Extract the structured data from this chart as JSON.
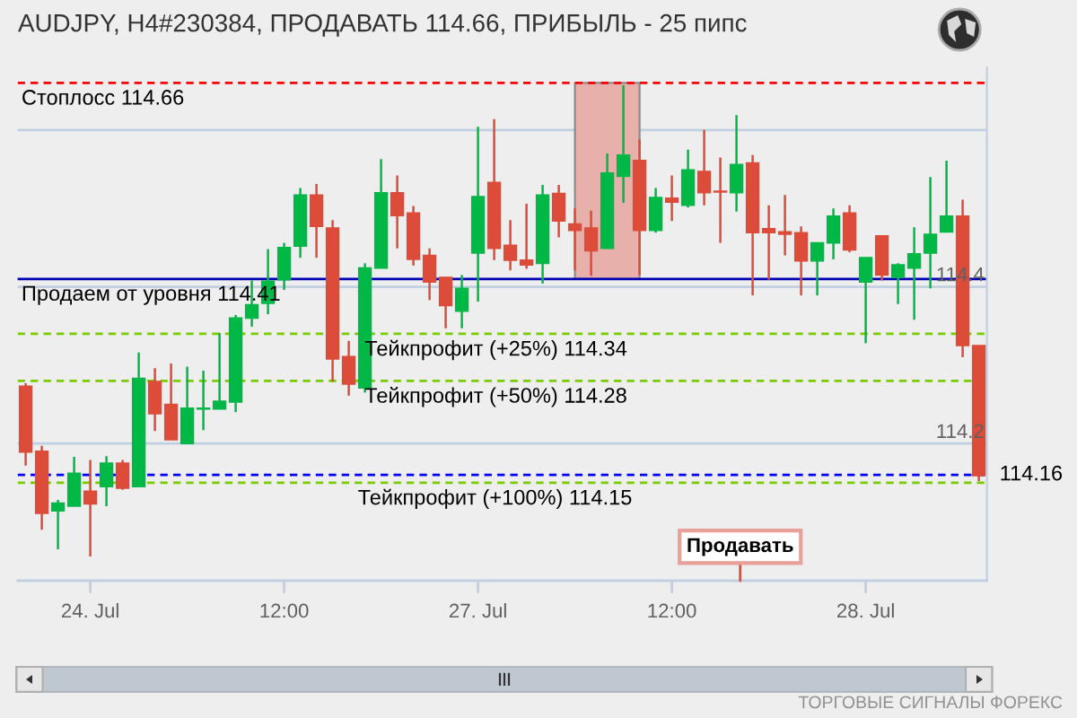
{
  "chart_data": {
    "type": "candlestick",
    "title": "AUDJPY, H4#230384, ПРОДАВАТЬ 114.66, ПРИБЫЛЬ - 25 пипс",
    "categories": [
      null,
      null,
      null,
      null,
      "24. Jul",
      null,
      null,
      null,
      null,
      null,
      null,
      null,
      null,
      null,
      null,
      null,
      "12:00",
      null,
      null,
      null,
      null,
      null,
      null,
      null,
      null,
      null,
      null,
      null,
      "27. Jul",
      null,
      null,
      null,
      null,
      null,
      null,
      null,
      null,
      null,
      null,
      null,
      "12:00",
      null,
      null,
      null,
      null,
      null,
      null,
      null,
      null,
      null,
      null,
      null,
      "28. Jul",
      null,
      null,
      null,
      null,
      null,
      null,
      null
    ],
    "series": [
      {
        "type": "line",
        "color": "#e8b0ab",
        "values": [
          null,
          null,
          null,
          null,
          null,
          null,
          null,
          null,
          null,
          null,
          null,
          null,
          null,
          null,
          null,
          null,
          null,
          null,
          null,
          null,
          null,
          null,
          null,
          null,
          null,
          null,
          null,
          null,
          null,
          null,
          null,
          null,
          null,
          null,
          null,
          null,
          null,
          null,
          null,
          null,
          null,
          null,
          null,
          null,
          null,
          null,
          null,
          null,
          null,
          null,
          null,
          null,
          null,
          null,
          null,
          null,
          null,
          null,
          null,
          null
        ],
        "lower": [
          null,
          null,
          null,
          null,
          null,
          null,
          null,
          null,
          null,
          null,
          null,
          null,
          null,
          null,
          null,
          null,
          null,
          null,
          null,
          null,
          null,
          null,
          null,
          null,
          null,
          null,
          null,
          null,
          null,
          null,
          null,
          null,
          null,
          null,
          114.41,
          114.41,
          114.41,
          114.41,
          114.41,
          null,
          null,
          null,
          null,
          null,
          null,
          null,
          null,
          null,
          null,
          null,
          null,
          null,
          null,
          null,
          null,
          null,
          null,
          null,
          null,
          null
        ],
        "upper": [
          null,
          null,
          null,
          null,
          null,
          null,
          null,
          null,
          null,
          null,
          null,
          null,
          null,
          null,
          null,
          null,
          null,
          null,
          null,
          null,
          null,
          null,
          null,
          null,
          null,
          null,
          null,
          null,
          null,
          null,
          null,
          null,
          null,
          null,
          114.66,
          114.66,
          114.66,
          114.66,
          114.66,
          null,
          null,
          null,
          null,
          null,
          null,
          null,
          null,
          null,
          null,
          null,
          null,
          null,
          null,
          null,
          null,
          null,
          null,
          null,
          null,
          null
        ]
      },
      {
        "ohlc": [
          [
            114.273,
            114.277,
            114.172,
            114.189
          ],
          [
            114.19,
            114.197,
            114.09,
            114.111
          ],
          [
            114.114,
            114.128,
            114.065,
            114.124
          ],
          [
            114.12,
            114.183,
            114.12,
            114.162
          ],
          [
            114.139,
            114.179,
            114.056,
            114.123
          ],
          [
            114.145,
            114.184,
            114.12,
            114.175
          ],
          [
            114.175,
            114.179,
            114.141,
            114.143
          ],
          [
            114.145,
            114.316,
            114.145,
            114.283
          ],
          [
            114.279,
            114.296,
            114.216,
            114.238
          ],
          [
            114.25,
            114.302,
            114.205,
            114.205
          ],
          [
            114.2,
            114.298,
            114.2,
            114.245
          ],
          [
            114.244,
            114.293,
            114.217,
            114.245
          ],
          [
            114.244,
            114.341,
            114.244,
            114.254
          ],
          [
            114.253,
            114.364,
            114.24,
            114.36
          ],
          [
            114.36,
            114.408,
            114.349,
            114.377
          ],
          [
            114.379,
            114.448,
            114.365,
            114.407
          ],
          [
            114.409,
            114.456,
            114.396,
            114.45
          ],
          [
            114.452,
            114.526,
            114.437,
            114.517
          ],
          [
            114.517,
            114.531,
            114.437,
            114.477
          ],
          [
            114.475,
            114.485,
            114.279,
            114.308
          ],
          [
            114.311,
            114.331,
            114.261,
            114.276
          ],
          [
            114.271,
            114.43,
            114.265,
            114.424
          ],
          [
            114.424,
            114.563,
            114.424,
            114.52
          ],
          [
            114.52,
            114.542,
            114.449,
            114.491
          ],
          [
            114.494,
            114.503,
            114.427,
            114.435
          ],
          [
            114.44,
            114.449,
            114.383,
            114.406
          ],
          [
            114.412,
            114.412,
            114.347,
            114.376
          ],
          [
            114.369,
            114.415,
            114.347,
            114.398
          ],
          [
            114.443,
            114.604,
            114.381,
            114.515
          ],
          [
            114.533,
            114.614,
            114.434,
            114.449
          ],
          [
            114.453,
            114.485,
            114.421,
            114.434
          ],
          [
            114.434,
            114.506,
            114.423,
            114.428
          ],
          [
            114.43,
            114.53,
            114.404,
            114.517
          ],
          [
            114.519,
            114.53,
            114.463,
            114.484
          ],
          [
            114.48,
            114.5,
            114.421,
            114.472
          ],
          [
            114.475,
            114.497,
            114.414,
            114.446
          ],
          [
            114.449,
            114.57,
            114.449,
            114.545
          ],
          [
            114.541,
            114.657,
            114.507,
            114.568
          ],
          [
            114.561,
            114.588,
            114.415,
            114.472
          ],
          [
            114.472,
            114.526,
            114.469,
            114.514
          ],
          [
            114.513,
            114.542,
            114.484,
            114.508
          ],
          [
            114.504,
            114.575,
            114.501,
            114.549
          ],
          [
            114.547,
            114.6,
            114.504,
            114.52
          ],
          [
            114.522,
            114.565,
            114.456,
            114.521
          ],
          [
            114.52,
            114.619,
            114.496,
            114.556
          ],
          [
            114.558,
            114.568,
            114.389,
            114.469
          ],
          [
            114.474,
            114.504,
            114.409,
            114.469
          ],
          [
            114.47,
            114.517,
            114.44,
            114.467
          ],
          [
            114.469,
            114.477,
            114.389,
            114.433
          ],
          [
            114.433,
            114.456,
            114.389,
            114.456
          ],
          [
            114.456,
            114.5,
            114.435,
            114.49
          ],
          [
            114.494,
            114.504,
            114.444,
            114.447
          ],
          [
            114.406,
            114.437,
            114.328,
            114.437
          ],
          [
            114.465,
            114.465,
            114.408,
            114.415
          ],
          [
            114.412,
            114.43,
            114.378,
            114.428
          ],
          [
            114.424,
            114.476,
            114.358,
            114.442
          ],
          [
            114.443,
            114.54,
            114.398,
            114.467
          ],
          [
            114.47,
            114.561,
            114.47,
            114.49
          ],
          [
            114.49,
            114.511,
            114.31,
            114.325
          ],
          [
            114.325,
            114.325,
            114.152,
            114.159
          ]
        ],
        "colors": [
          "#dd4b39",
          "#dd4b39",
          "#00b846",
          "#00b846",
          "#dd4b39",
          "#00b846",
          "#dd4b39",
          "#00b846",
          "#dd4b39",
          "#dd4b39",
          "#00b846",
          "#00b846",
          "#00b846",
          "#00b846",
          "#00b846",
          "#00b846",
          "#00b846",
          "#00b846",
          "#dd4b39",
          "#dd4b39",
          "#dd4b39",
          "#00b846",
          "#00b846",
          "#dd4b39",
          "#dd4b39",
          "#dd4b39",
          "#dd4b39",
          "#00b846",
          "#00b846",
          "#dd4b39",
          "#dd4b39",
          "#dd4b39",
          "#00b846",
          "#dd4b39",
          "#dd4b39",
          "#dd4b39",
          "#00b846",
          "#00b846",
          "#dd4b39",
          "#00b846",
          "#dd4b39",
          "#00b846",
          "#dd4b39",
          "#dd4b39",
          "#00b846",
          "#dd4b39",
          "#dd4b39",
          "#dd4b39",
          "#dd4b39",
          "#00b846",
          "#00b846",
          "#dd4b39",
          "#00b846",
          "#dd4b39",
          "#00b846",
          "#00b846",
          "#00b846",
          "#00b846",
          "#dd4b39",
          "#dd4b39"
        ]
      }
    ],
    "ylim": [
      114.025,
      114.68
    ],
    "yticks": [
      114.2,
      114.4,
      {
        "value": 114.6,
        "label": null
      }
    ],
    "grid": "y",
    "ref_lines": [
      {
        "axis": "y",
        "value": 114.66,
        "label": "Стоплосс 114.66",
        "color": "#ff0000",
        "line_style": "dashed"
      },
      {
        "axis": "y",
        "value": 114.41,
        "label": "Продаем от уровня 114.41",
        "color": "#0000b4",
        "line_style": "solid"
      },
      {
        "axis": "y",
        "value": 114.34,
        "label": "Тейкпрофит (+25%) 114.34",
        "color": "#7acc00",
        "line_style": "dashed"
      },
      {
        "axis": "y",
        "value": 114.28,
        "label": "Тейкпрофит (+50%) 114.28",
        "color": "#7acc00",
        "line_style": "dashed"
      },
      {
        "axis": "y",
        "value": 114.15,
        "label": "Тейкпрофит (+100%) 114.15",
        "color": "#7acc00",
        "line_style": "dashed"
      },
      {
        "axis": "y",
        "value": 114.16,
        "label": "114.16",
        "color": "#0000ff",
        "line_style": "dashed"
      }
    ],
    "annotations": [
      "Продавать",
      "ТОРГОВЫЕ СИГНАЛЫ ФОРЕКС"
    ]
  }
}
